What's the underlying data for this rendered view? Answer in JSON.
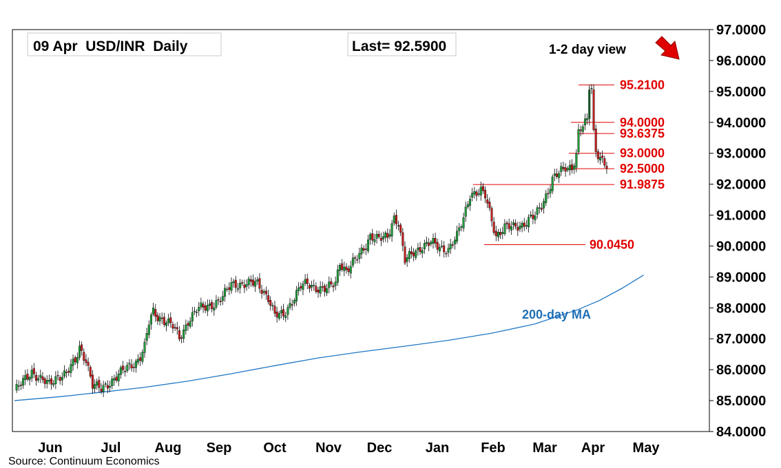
{
  "header": {
    "title": "09 Apr  USD/INR  Daily",
    "last_label": "Last= 92.5900",
    "view_label": "1-2 day view",
    "view_arrow_icon": "arrow-down-right-icon",
    "arrow_color": "#e00000"
  },
  "source": "Source: Continuum Economics",
  "colors": {
    "up_candle": "#1e9e3a",
    "down_candle": "#c81e1e",
    "level_line": "#e00000",
    "ma_line": "#1f77c4"
  },
  "chart_data": {
    "type": "candlestick",
    "yticks": [
      "84.0000",
      "85.0000",
      "86.0000",
      "87.0000",
      "88.0000",
      "89.0000",
      "90.0000",
      "91.0000",
      "92.0000",
      "93.0000",
      "94.0000",
      "95.0000",
      "96.0000",
      "97.0000"
    ],
    "ylim": [
      84.0,
      97.0
    ],
    "xticks": [
      "Jun",
      "Jul",
      "Aug",
      "Sep",
      "Oct",
      "Nov",
      "Dec",
      "Jan",
      "Feb",
      "Mar",
      "Apr",
      "May"
    ],
    "levels": [
      {
        "label": "95.2100",
        "value": 95.21
      },
      {
        "label": "94.0000",
        "value": 94.0
      },
      {
        "label": "93.6375",
        "value": 93.6375
      },
      {
        "label": "93.0000",
        "value": 93.0
      },
      {
        "label": "92.5000",
        "value": 92.5
      },
      {
        "label": "91.9875",
        "value": 91.9875
      },
      {
        "label": "90.0450",
        "value": 90.045
      }
    ],
    "ma_label": "200-day MA",
    "ma_series": [
      [
        0,
        85.0
      ],
      [
        20,
        85.12
      ],
      [
        40,
        85.27
      ],
      [
        60,
        85.43
      ],
      [
        80,
        85.63
      ],
      [
        100,
        85.87
      ],
      [
        120,
        86.13
      ],
      [
        140,
        86.38
      ],
      [
        160,
        86.58
      ],
      [
        180,
        86.76
      ],
      [
        200,
        86.95
      ],
      [
        220,
        87.18
      ],
      [
        240,
        87.48
      ],
      [
        260,
        87.95
      ],
      [
        270,
        88.25
      ],
      [
        280,
        88.63
      ],
      [
        290,
        89.06
      ]
    ],
    "price_knots": [
      [
        0,
        85.3
      ],
      [
        4,
        85.6
      ],
      [
        8,
        85.95
      ],
      [
        12,
        85.7
      ],
      [
        16,
        85.5
      ],
      [
        20,
        85.8
      ],
      [
        24,
        85.9
      ],
      [
        28,
        86.25
      ],
      [
        30,
        86.7
      ],
      [
        33,
        86.35
      ],
      [
        36,
        85.5
      ],
      [
        40,
        85.35
      ],
      [
        44,
        85.6
      ],
      [
        48,
        85.85
      ],
      [
        52,
        86.05
      ],
      [
        56,
        86.25
      ],
      [
        58,
        86.45
      ],
      [
        60,
        86.75
      ],
      [
        62,
        87.5
      ],
      [
        64,
        87.85
      ],
      [
        66,
        87.7
      ],
      [
        70,
        87.6
      ],
      [
        73,
        87.4
      ],
      [
        76,
        87.0
      ],
      [
        78,
        87.25
      ],
      [
        80,
        87.6
      ],
      [
        84,
        87.95
      ],
      [
        88,
        88.0
      ],
      [
        92,
        88.15
      ],
      [
        96,
        88.35
      ],
      [
        100,
        88.75
      ],
      [
        104,
        88.78
      ],
      [
        108,
        88.78
      ],
      [
        112,
        88.78
      ],
      [
        117,
        88.35
      ],
      [
        120,
        87.75
      ],
      [
        124,
        87.75
      ],
      [
        128,
        88.25
      ],
      [
        132,
        88.7
      ],
      [
        135,
        88.75
      ],
      [
        140,
        88.65
      ],
      [
        144,
        88.6
      ],
      [
        148,
        88.8
      ],
      [
        150,
        89.5
      ],
      [
        153,
        89.2
      ],
      [
        158,
        89.6
      ],
      [
        162,
        90.05
      ],
      [
        164,
        90.35
      ],
      [
        168,
        90.2
      ],
      [
        172,
        90.3
      ],
      [
        175,
        90.95
      ],
      [
        177,
        90.75
      ],
      [
        180,
        89.5
      ],
      [
        184,
        89.8
      ],
      [
        188,
        90.0
      ],
      [
        192,
        90.1
      ],
      [
        196,
        89.95
      ],
      [
        200,
        89.9
      ],
      [
        204,
        90.3
      ],
      [
        207,
        90.9
      ],
      [
        210,
        91.7
      ],
      [
        215,
        91.75
      ],
      [
        217,
        91.6
      ],
      [
        222,
        90.35
      ],
      [
        226,
        90.6
      ],
      [
        230,
        90.6
      ],
      [
        234,
        90.7
      ],
      [
        238,
        90.9
      ],
      [
        240,
        90.95
      ],
      [
        243,
        91.3
      ],
      [
        246,
        91.8
      ],
      [
        248,
        92.2
      ],
      [
        251,
        92.35
      ],
      [
        254,
        92.5
      ],
      [
        257,
        92.55
      ],
      [
        259,
        93.0
      ],
      [
        260,
        93.7
      ],
      [
        262,
        93.9
      ],
      [
        264,
        94.0
      ],
      [
        265,
        95.0
      ],
      [
        266,
        95.1
      ],
      [
        267,
        93.65
      ],
      [
        268,
        93.1
      ],
      [
        270,
        92.9
      ],
      [
        272,
        92.7
      ],
      [
        273,
        92.59
      ]
    ]
  }
}
